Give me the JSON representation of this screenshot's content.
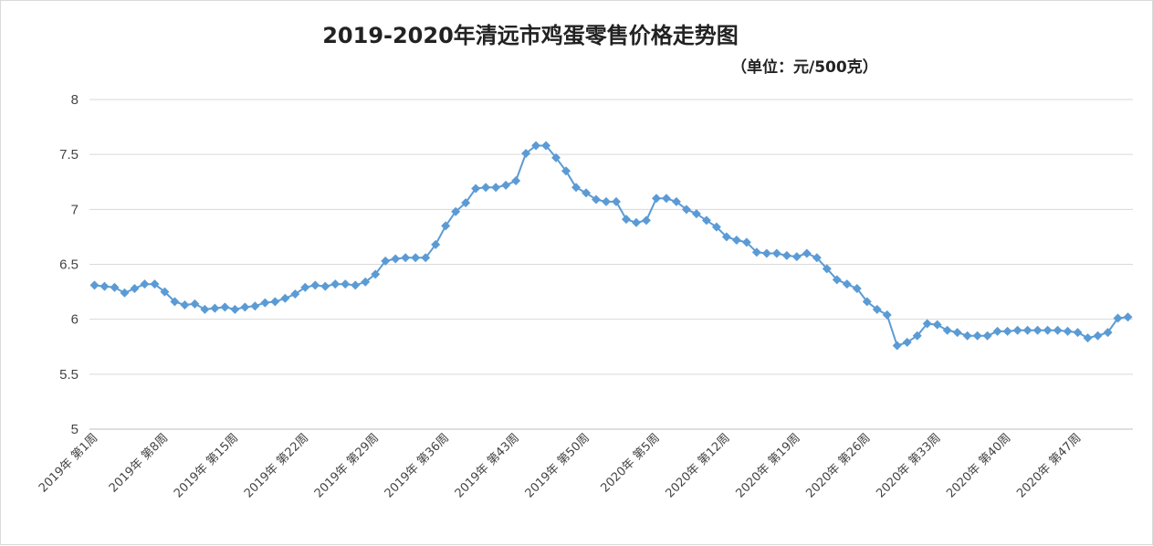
{
  "chart_data": {
    "type": "line",
    "title": "2019-2020年清远市鸡蛋零售价格走势图",
    "subtitle": "（单位：元/500克）",
    "xlabel": "",
    "ylabel": "",
    "ylim": [
      5,
      8
    ],
    "yticks": [
      "5",
      "5.5",
      "6",
      "6.5",
      "7",
      "7.5",
      "8"
    ],
    "grid": true,
    "legend": "none",
    "marker": "diamond",
    "color": "#5b9bd5",
    "tick_labels": [
      "2019年 第1周",
      "2019年 第8周",
      "2019年 第15周",
      "2019年 第22周",
      "2019年 第29周",
      "2019年 第36周",
      "2019年 第43周",
      "2019年 第50周",
      "2020年 第5周",
      "2020年 第12周",
      "2020年 第19周",
      "2020年 第26周",
      "2020年 第33周",
      "2020年 第40周",
      "2020年 第47周"
    ],
    "tick_every": 7,
    "series": [
      {
        "values": [
          6.31,
          6.3,
          6.29,
          6.24,
          6.28,
          6.32,
          6.32,
          6.25,
          6.16,
          6.13,
          6.14,
          6.09,
          6.1,
          6.11,
          6.09,
          6.11,
          6.12,
          6.15,
          6.16,
          6.19,
          6.23,
          6.29,
          6.31,
          6.3,
          6.32,
          6.32,
          6.31,
          6.34,
          6.41,
          6.53,
          6.55,
          6.56,
          6.56,
          6.56,
          6.68,
          6.85,
          6.98,
          7.06,
          7.19,
          7.2,
          7.2,
          7.22,
          7.26,
          7.51,
          7.58,
          7.58,
          7.47,
          7.35,
          7.2,
          7.15,
          7.09,
          7.07,
          7.07,
          6.91,
          6.88,
          6.9,
          7.1,
          7.1,
          7.07,
          7.0,
          6.96,
          6.9,
          6.84,
          6.75,
          6.72,
          6.7,
          6.61,
          6.6,
          6.6,
          6.58,
          6.57,
          6.6,
          6.56,
          6.46,
          6.36,
          6.32,
          6.28,
          6.16,
          6.09,
          6.04,
          5.76,
          5.79,
          5.85,
          5.96,
          5.95,
          5.9,
          5.88,
          5.85,
          5.85,
          5.85,
          5.89,
          5.89,
          5.9,
          5.9,
          5.9,
          5.9,
          5.9,
          5.89,
          5.88,
          5.83,
          5.85,
          5.88,
          6.01,
          6.02
        ]
      }
    ]
  }
}
